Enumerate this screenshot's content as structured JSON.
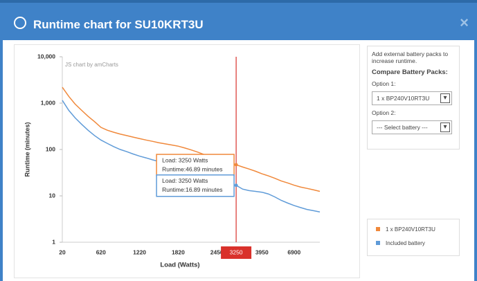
{
  "dialog": {
    "title": "Runtime chart for SU10KRT3U",
    "close": "×"
  },
  "side_panel": {
    "intro": "Add external battery packs to increase runtime.",
    "heading": "Compare Battery Packs:",
    "option1_label": "Option 1:",
    "option1_value": "1 x BP240V10RT3U",
    "option2_label": "Option 2:",
    "option2_value": "--- Select battery ---"
  },
  "chart_data": {
    "type": "line",
    "credit": "JS chart by amCharts",
    "y_label": "Runtime (minutes)",
    "x_label": "Load (Watts)",
    "log_scale": true,
    "ylim": [
      1,
      10000
    ],
    "yticks": [
      1,
      10,
      100,
      {
        "value": 1000,
        "label": "1,000"
      },
      {
        "value": 10000,
        "label": "10,000"
      }
    ],
    "categories": [
      "20",
      null,
      null,
      null,
      null,
      null,
      "620",
      null,
      null,
      null,
      null,
      null,
      "1220",
      null,
      null,
      null,
      null,
      null,
      "1820",
      null,
      null,
      null,
      null,
      null,
      "2450",
      null,
      null,
      "3250",
      null,
      null,
      null,
      "3950",
      null,
      null,
      null,
      null,
      "6900",
      null,
      null,
      null,
      null
    ],
    "cursor": {
      "category": "3250"
    },
    "series": [
      {
        "name": "1 x BP240V10RT3U",
        "color": "#f0883a",
        "balloon": [
          "Load: 3250 Watts",
          "Runtime:46.89 minutes"
        ],
        "values": [
          2200,
          1400,
          950,
          700,
          520,
          400,
          300,
          260,
          235,
          215,
          200,
          185,
          172,
          160,
          150,
          140,
          132,
          125,
          118,
          108,
          98,
          88,
          78,
          70,
          63,
          57,
          52,
          46.89,
          42,
          38,
          34,
          30,
          27,
          24,
          21,
          19,
          17,
          15.5,
          14.5,
          13.5,
          12.5
        ]
      },
      {
        "name": "Included battery",
        "color": "#5f9bd8",
        "balloon": [
          "Load: 3250 Watts",
          "Runtime:16.89 minutes"
        ],
        "values": [
          1150,
          700,
          480,
          350,
          260,
          200,
          160,
          135,
          115,
          100,
          90,
          80,
          72,
          66,
          60,
          55,
          50,
          45,
          41,
          37,
          33,
          30,
          27,
          24,
          21,
          19,
          18,
          16.89,
          14,
          13,
          12.5,
          12,
          11,
          9.5,
          8,
          7,
          6.2,
          5.6,
          5.1,
          4.8,
          4.5
        ]
      }
    ]
  }
}
